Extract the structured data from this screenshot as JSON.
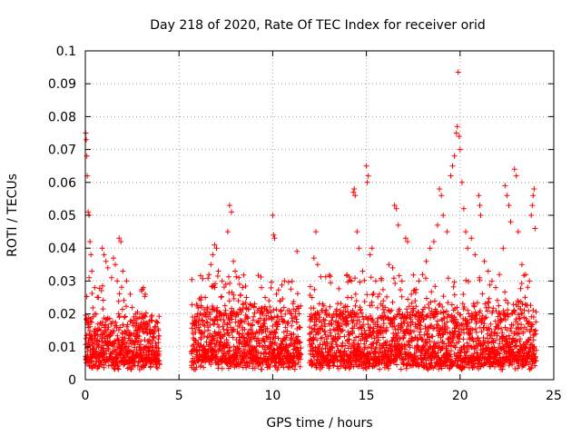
{
  "chart_data": {
    "type": "scatter",
    "title": "Day 218 of 2020, Rate Of TEC Index for receiver orid",
    "xlabel": "GPS time / hours",
    "ylabel": "ROTI / TECUs",
    "xlim": [
      0,
      25
    ],
    "ylim": [
      0,
      0.1
    ],
    "xticks": [
      "0",
      "5",
      "10",
      "15",
      "20",
      "25"
    ],
    "yticks": [
      "0",
      "0.01",
      "0.02",
      "0.03",
      "0.04",
      "0.05",
      "0.06",
      "0.07",
      "0.08",
      "0.09",
      "0.1"
    ],
    "grid": true,
    "marker": "+",
    "color": "#ff0000",
    "series": [
      {
        "points": [
          [
            0.02,
            0.075
          ],
          [
            0.05,
            0.073
          ],
          [
            0.08,
            0.068
          ],
          [
            0.1,
            0.062
          ],
          [
            0.15,
            0.051
          ],
          [
            0.2,
            0.05
          ],
          [
            0.25,
            0.042
          ],
          [
            0.3,
            0.038
          ],
          [
            0.35,
            0.033
          ],
          [
            0.2,
            0.031
          ],
          [
            0.5,
            0.028
          ],
          [
            0.7,
            0.025
          ],
          [
            0.9,
            0.04
          ],
          [
            1.0,
            0.038
          ],
          [
            1.1,
            0.036
          ],
          [
            1.2,
            0.034
          ],
          [
            1.4,
            0.031
          ],
          [
            1.5,
            0.037
          ],
          [
            1.6,
            0.035
          ],
          [
            1.7,
            0.03
          ],
          [
            1.8,
            0.043
          ],
          [
            1.9,
            0.042
          ],
          [
            2.0,
            0.033
          ],
          [
            2.2,
            0.03
          ],
          [
            2.4,
            0.026
          ],
          [
            2.5,
            0.022
          ],
          [
            2.7,
            0.02
          ],
          [
            2.9,
            0.019
          ],
          [
            3.0,
            0.027
          ],
          [
            3.1,
            0.028
          ],
          [
            3.2,
            0.026
          ],
          [
            3.5,
            0.018
          ],
          [
            3.7,
            0.016
          ],
          [
            3.9,
            0.015
          ],
          [
            5.8,
            0.017
          ],
          [
            6.0,
            0.02
          ],
          [
            6.2,
            0.022
          ],
          [
            6.4,
            0.025
          ],
          [
            6.6,
            0.032
          ],
          [
            6.7,
            0.035
          ],
          [
            6.8,
            0.038
          ],
          [
            6.9,
            0.041
          ],
          [
            7.0,
            0.04
          ],
          [
            7.1,
            0.033
          ],
          [
            7.3,
            0.03
          ],
          [
            7.5,
            0.029
          ],
          [
            7.6,
            0.045
          ],
          [
            7.7,
            0.053
          ],
          [
            7.8,
            0.051
          ],
          [
            7.9,
            0.036
          ],
          [
            8.0,
            0.033
          ],
          [
            8.2,
            0.031
          ],
          [
            8.4,
            0.028
          ],
          [
            8.6,
            0.025
          ],
          [
            8.8,
            0.023
          ],
          [
            9.0,
            0.022
          ],
          [
            9.2,
            0.021
          ],
          [
            9.4,
            0.028
          ],
          [
            9.6,
            0.025
          ],
          [
            9.8,
            0.024
          ],
          [
            10.0,
            0.05
          ],
          [
            10.05,
            0.044
          ],
          [
            10.1,
            0.043
          ],
          [
            10.2,
            0.026
          ],
          [
            10.4,
            0.024
          ],
          [
            10.6,
            0.022
          ],
          [
            10.8,
            0.021
          ],
          [
            11.0,
            0.02
          ],
          [
            11.2,
            0.019
          ],
          [
            11.3,
            0.039
          ],
          [
            12.1,
            0.025
          ],
          [
            12.2,
            0.037
          ],
          [
            12.3,
            0.045
          ],
          [
            12.4,
            0.035
          ],
          [
            12.6,
            0.021
          ],
          [
            12.8,
            0.018
          ],
          [
            13.0,
            0.017
          ],
          [
            13.2,
            0.019
          ],
          [
            13.4,
            0.02
          ],
          [
            13.6,
            0.021
          ],
          [
            13.8,
            0.022
          ],
          [
            14.0,
            0.025
          ],
          [
            14.2,
            0.03
          ],
          [
            14.3,
            0.057
          ],
          [
            14.35,
            0.058
          ],
          [
            14.4,
            0.056
          ],
          [
            14.5,
            0.045
          ],
          [
            14.6,
            0.04
          ],
          [
            14.8,
            0.033
          ],
          [
            15.0,
            0.065
          ],
          [
            15.05,
            0.06
          ],
          [
            15.1,
            0.062
          ],
          [
            15.2,
            0.038
          ],
          [
            15.3,
            0.04
          ],
          [
            15.5,
            0.03
          ],
          [
            15.7,
            0.026
          ],
          [
            15.9,
            0.024
          ],
          [
            16.0,
            0.022
          ],
          [
            16.2,
            0.035
          ],
          [
            16.4,
            0.034
          ],
          [
            16.5,
            0.053
          ],
          [
            16.6,
            0.052
          ],
          [
            16.7,
            0.047
          ],
          [
            16.9,
            0.03
          ],
          [
            17.1,
            0.043
          ],
          [
            17.2,
            0.042
          ],
          [
            17.4,
            0.026
          ],
          [
            17.6,
            0.024
          ],
          [
            17.8,
            0.03
          ],
          [
            18.0,
            0.032
          ],
          [
            18.2,
            0.036
          ],
          [
            18.4,
            0.04
          ],
          [
            18.6,
            0.042
          ],
          [
            18.8,
            0.047
          ],
          [
            18.9,
            0.058
          ],
          [
            19.0,
            0.056
          ],
          [
            19.1,
            0.05
          ],
          [
            19.3,
            0.045
          ],
          [
            19.5,
            0.062
          ],
          [
            19.6,
            0.065
          ],
          [
            19.7,
            0.068
          ],
          [
            19.8,
            0.075
          ],
          [
            19.85,
            0.077
          ],
          [
            19.9,
            0.0935
          ],
          [
            19.95,
            0.074
          ],
          [
            20.0,
            0.07
          ],
          [
            20.1,
            0.06
          ],
          [
            20.2,
            0.052
          ],
          [
            20.3,
            0.045
          ],
          [
            20.4,
            0.04
          ],
          [
            20.6,
            0.043
          ],
          [
            20.8,
            0.038
          ],
          [
            21.0,
            0.056
          ],
          [
            21.05,
            0.053
          ],
          [
            21.1,
            0.05
          ],
          [
            21.3,
            0.036
          ],
          [
            21.5,
            0.033
          ],
          [
            21.7,
            0.03
          ],
          [
            21.9,
            0.028
          ],
          [
            22.1,
            0.032
          ],
          [
            22.3,
            0.04
          ],
          [
            22.4,
            0.059
          ],
          [
            22.5,
            0.056
          ],
          [
            22.6,
            0.053
          ],
          [
            22.7,
            0.048
          ],
          [
            22.9,
            0.064
          ],
          [
            23.0,
            0.062
          ],
          [
            23.1,
            0.045
          ],
          [
            23.3,
            0.035
          ],
          [
            23.5,
            0.032
          ],
          [
            23.7,
            0.03
          ],
          [
            23.8,
            0.05
          ],
          [
            23.85,
            0.053
          ],
          [
            23.9,
            0.056
          ],
          [
            23.95,
            0.058
          ],
          [
            24.0,
            0.046
          ]
        ]
      }
    ],
    "dense_segments": [
      {
        "x_start": 0.0,
        "x_end": 3.95,
        "y_low": 0.003,
        "y_high": 0.017,
        "step": 0.02
      },
      {
        "x_start": 5.65,
        "x_end": 11.5,
        "y_low": 0.003,
        "y_high": 0.02,
        "step": 0.02
      },
      {
        "x_start": 11.95,
        "x_end": 24.05,
        "y_low": 0.003,
        "y_high": 0.02,
        "step": 0.02
      }
    ]
  }
}
